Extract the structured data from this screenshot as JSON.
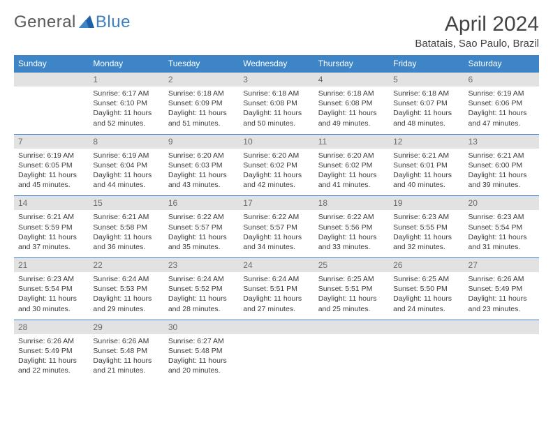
{
  "logo": {
    "text1": "General",
    "text2": "Blue"
  },
  "title": "April 2024",
  "location": "Batatais, Sao Paulo, Brazil",
  "colors": {
    "header_bg": "#3d85c6",
    "header_fg": "#ffffff",
    "daynum_bg": "#e2e2e2",
    "rule": "#3d7fc4",
    "logo_blue": "#3d7fc4",
    "text": "#3a3a3a"
  },
  "dayNames": [
    "Sunday",
    "Monday",
    "Tuesday",
    "Wednesday",
    "Thursday",
    "Friday",
    "Saturday"
  ],
  "weeks": [
    [
      {
        "n": "",
        "sr": "",
        "ss": "",
        "dl": ""
      },
      {
        "n": "1",
        "sr": "Sunrise: 6:17 AM",
        "ss": "Sunset: 6:10 PM",
        "dl": "Daylight: 11 hours and 52 minutes."
      },
      {
        "n": "2",
        "sr": "Sunrise: 6:18 AM",
        "ss": "Sunset: 6:09 PM",
        "dl": "Daylight: 11 hours and 51 minutes."
      },
      {
        "n": "3",
        "sr": "Sunrise: 6:18 AM",
        "ss": "Sunset: 6:08 PM",
        "dl": "Daylight: 11 hours and 50 minutes."
      },
      {
        "n": "4",
        "sr": "Sunrise: 6:18 AM",
        "ss": "Sunset: 6:08 PM",
        "dl": "Daylight: 11 hours and 49 minutes."
      },
      {
        "n": "5",
        "sr": "Sunrise: 6:18 AM",
        "ss": "Sunset: 6:07 PM",
        "dl": "Daylight: 11 hours and 48 minutes."
      },
      {
        "n": "6",
        "sr": "Sunrise: 6:19 AM",
        "ss": "Sunset: 6:06 PM",
        "dl": "Daylight: 11 hours and 47 minutes."
      }
    ],
    [
      {
        "n": "7",
        "sr": "Sunrise: 6:19 AM",
        "ss": "Sunset: 6:05 PM",
        "dl": "Daylight: 11 hours and 45 minutes."
      },
      {
        "n": "8",
        "sr": "Sunrise: 6:19 AM",
        "ss": "Sunset: 6:04 PM",
        "dl": "Daylight: 11 hours and 44 minutes."
      },
      {
        "n": "9",
        "sr": "Sunrise: 6:20 AM",
        "ss": "Sunset: 6:03 PM",
        "dl": "Daylight: 11 hours and 43 minutes."
      },
      {
        "n": "10",
        "sr": "Sunrise: 6:20 AM",
        "ss": "Sunset: 6:02 PM",
        "dl": "Daylight: 11 hours and 42 minutes."
      },
      {
        "n": "11",
        "sr": "Sunrise: 6:20 AM",
        "ss": "Sunset: 6:02 PM",
        "dl": "Daylight: 11 hours and 41 minutes."
      },
      {
        "n": "12",
        "sr": "Sunrise: 6:21 AM",
        "ss": "Sunset: 6:01 PM",
        "dl": "Daylight: 11 hours and 40 minutes."
      },
      {
        "n": "13",
        "sr": "Sunrise: 6:21 AM",
        "ss": "Sunset: 6:00 PM",
        "dl": "Daylight: 11 hours and 39 minutes."
      }
    ],
    [
      {
        "n": "14",
        "sr": "Sunrise: 6:21 AM",
        "ss": "Sunset: 5:59 PM",
        "dl": "Daylight: 11 hours and 37 minutes."
      },
      {
        "n": "15",
        "sr": "Sunrise: 6:21 AM",
        "ss": "Sunset: 5:58 PM",
        "dl": "Daylight: 11 hours and 36 minutes."
      },
      {
        "n": "16",
        "sr": "Sunrise: 6:22 AM",
        "ss": "Sunset: 5:57 PM",
        "dl": "Daylight: 11 hours and 35 minutes."
      },
      {
        "n": "17",
        "sr": "Sunrise: 6:22 AM",
        "ss": "Sunset: 5:57 PM",
        "dl": "Daylight: 11 hours and 34 minutes."
      },
      {
        "n": "18",
        "sr": "Sunrise: 6:22 AM",
        "ss": "Sunset: 5:56 PM",
        "dl": "Daylight: 11 hours and 33 minutes."
      },
      {
        "n": "19",
        "sr": "Sunrise: 6:23 AM",
        "ss": "Sunset: 5:55 PM",
        "dl": "Daylight: 11 hours and 32 minutes."
      },
      {
        "n": "20",
        "sr": "Sunrise: 6:23 AM",
        "ss": "Sunset: 5:54 PM",
        "dl": "Daylight: 11 hours and 31 minutes."
      }
    ],
    [
      {
        "n": "21",
        "sr": "Sunrise: 6:23 AM",
        "ss": "Sunset: 5:54 PM",
        "dl": "Daylight: 11 hours and 30 minutes."
      },
      {
        "n": "22",
        "sr": "Sunrise: 6:24 AM",
        "ss": "Sunset: 5:53 PM",
        "dl": "Daylight: 11 hours and 29 minutes."
      },
      {
        "n": "23",
        "sr": "Sunrise: 6:24 AM",
        "ss": "Sunset: 5:52 PM",
        "dl": "Daylight: 11 hours and 28 minutes."
      },
      {
        "n": "24",
        "sr": "Sunrise: 6:24 AM",
        "ss": "Sunset: 5:51 PM",
        "dl": "Daylight: 11 hours and 27 minutes."
      },
      {
        "n": "25",
        "sr": "Sunrise: 6:25 AM",
        "ss": "Sunset: 5:51 PM",
        "dl": "Daylight: 11 hours and 25 minutes."
      },
      {
        "n": "26",
        "sr": "Sunrise: 6:25 AM",
        "ss": "Sunset: 5:50 PM",
        "dl": "Daylight: 11 hours and 24 minutes."
      },
      {
        "n": "27",
        "sr": "Sunrise: 6:26 AM",
        "ss": "Sunset: 5:49 PM",
        "dl": "Daylight: 11 hours and 23 minutes."
      }
    ],
    [
      {
        "n": "28",
        "sr": "Sunrise: 6:26 AM",
        "ss": "Sunset: 5:49 PM",
        "dl": "Daylight: 11 hours and 22 minutes."
      },
      {
        "n": "29",
        "sr": "Sunrise: 6:26 AM",
        "ss": "Sunset: 5:48 PM",
        "dl": "Daylight: 11 hours and 21 minutes."
      },
      {
        "n": "30",
        "sr": "Sunrise: 6:27 AM",
        "ss": "Sunset: 5:48 PM",
        "dl": "Daylight: 11 hours and 20 minutes."
      },
      {
        "n": "",
        "sr": "",
        "ss": "",
        "dl": ""
      },
      {
        "n": "",
        "sr": "",
        "ss": "",
        "dl": ""
      },
      {
        "n": "",
        "sr": "",
        "ss": "",
        "dl": ""
      },
      {
        "n": "",
        "sr": "",
        "ss": "",
        "dl": ""
      }
    ]
  ]
}
